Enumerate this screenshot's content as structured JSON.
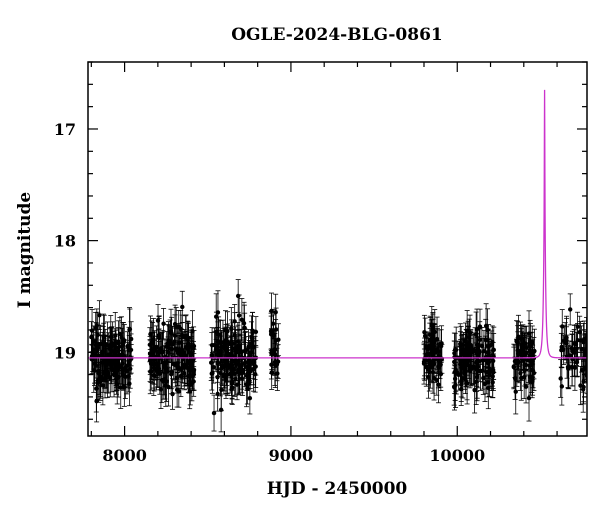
{
  "chart_data": {
    "type": "scatter",
    "title": "OGLE-2024-BLG-0861",
    "xlabel": "HJD - 2450000",
    "ylabel": "I magnitude",
    "xlim": [
      7780,
      10780
    ],
    "ylim": [
      19.75,
      16.4
    ],
    "y_inverted": true,
    "grid": false,
    "x_ticks": [
      8000,
      9000,
      10000
    ],
    "y_ticks": [
      17,
      18,
      19
    ],
    "point_color": "#000000",
    "model_color": "#cc33cc",
    "baseline_mag": 19.05,
    "seasons": [
      {
        "start": 7790,
        "end": 8040,
        "n": 140
      },
      {
        "start": 8150,
        "end": 8420,
        "n": 150
      },
      {
        "start": 8520,
        "end": 8790,
        "n": 150
      },
      {
        "start": 8880,
        "end": 8930,
        "n": 25
      },
      {
        "start": 9800,
        "end": 9910,
        "n": 60
      },
      {
        "start": 9980,
        "end": 10220,
        "n": 130
      },
      {
        "start": 10340,
        "end": 10470,
        "n": 60
      },
      {
        "start": 10620,
        "end": 10780,
        "n": 50
      }
    ],
    "model": {
      "t0": 10525,
      "tE": 12,
      "u0": 0.08,
      "baseline": 19.05,
      "peak_mag": 16.65
    }
  }
}
